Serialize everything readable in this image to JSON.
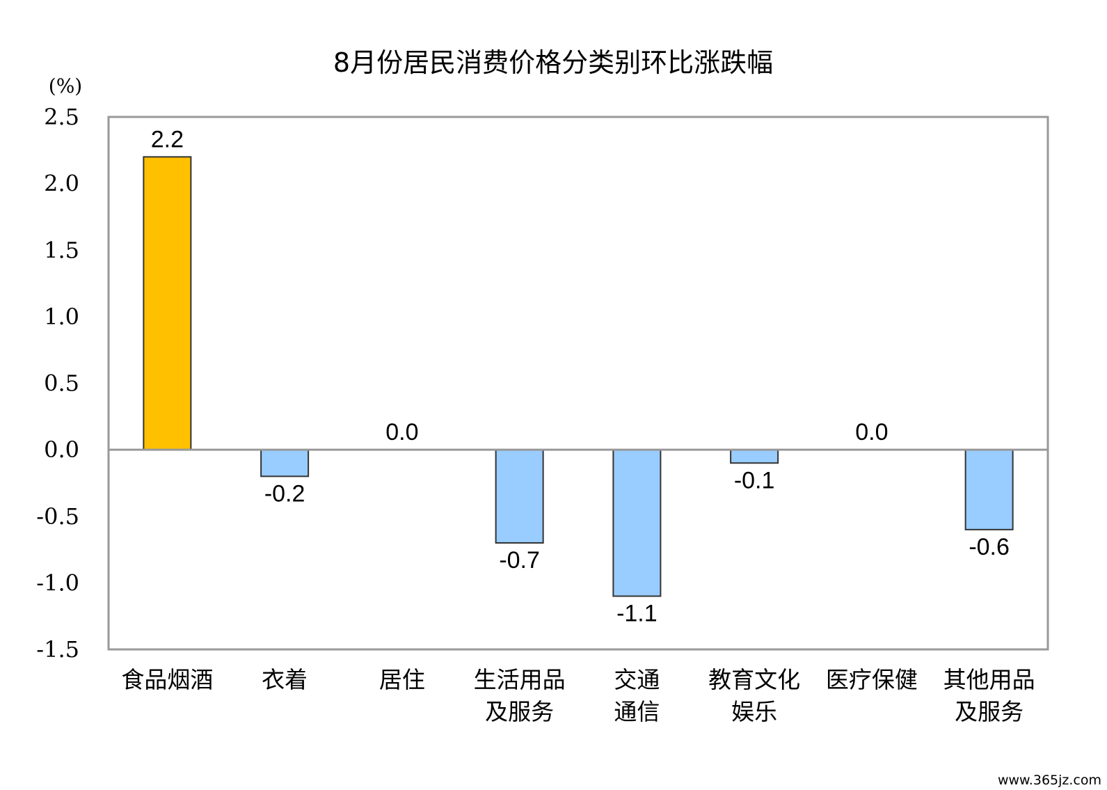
{
  "chart_data": {
    "type": "bar",
    "title": "8月份居民消费价格分类别环比涨跌幅",
    "unit_label": "(%)",
    "ylim": [
      -1.5,
      2.5
    ],
    "y_ticks": [
      "2.5",
      "2.0",
      "1.5",
      "1.0",
      "0.5",
      "0.0",
      "-0.5",
      "-1.0",
      "-1.5"
    ],
    "y_tick_values": [
      2.5,
      2.0,
      1.5,
      1.0,
      0.5,
      0.0,
      -0.5,
      -1.0,
      -1.5
    ],
    "categories": [
      [
        "食品烟酒"
      ],
      [
        "衣着"
      ],
      [
        "居住"
      ],
      [
        "生活用品",
        "及服务"
      ],
      [
        "交通",
        "通信"
      ],
      [
        "教育文化",
        "娱乐"
      ],
      [
        "医疗保健"
      ],
      [
        "其他用品",
        "及服务"
      ]
    ],
    "values": [
      2.2,
      -0.2,
      0.0,
      -0.7,
      -1.1,
      -0.1,
      0.0,
      -0.6
    ],
    "value_labels": [
      "2.2",
      "-0.2",
      "0.0",
      "-0.7",
      "-1.1",
      "-0.1",
      "0.0",
      "-0.6"
    ],
    "colors": {
      "positive": "#FFC000",
      "negative": "#99CCFF",
      "axis": "#999999",
      "border": "#333333"
    },
    "grid": false,
    "legend": "none"
  },
  "watermark": "www.365jz.com"
}
